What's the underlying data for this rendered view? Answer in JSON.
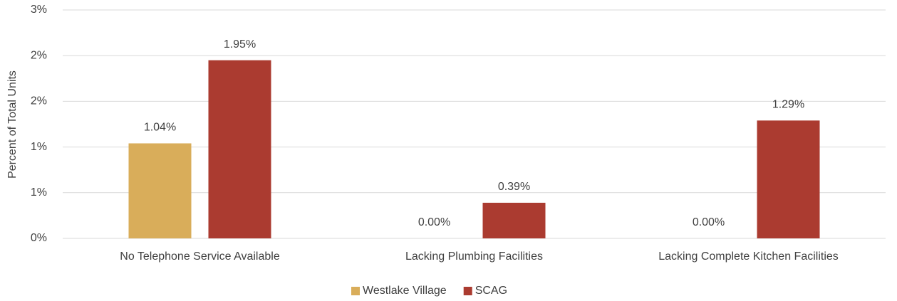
{
  "chart_data": {
    "type": "bar",
    "ylabel": "Percent of Total Units",
    "categories": [
      "No Telephone Service Available",
      "Lacking Plumbing Facilities",
      "Lacking Complete Kitchen Facilities"
    ],
    "series": [
      {
        "name": "Westlake Village",
        "color": "#d9ad5a",
        "values": [
          1.04,
          0.0,
          0.0
        ],
        "value_labels": [
          "1.04%",
          "0.00%",
          "0.00%"
        ]
      },
      {
        "name": "SCAG",
        "color": "#ab3b30",
        "values": [
          1.95,
          0.39,
          1.29
        ],
        "value_labels": [
          "1.95%",
          "0.39%",
          "1.29%"
        ]
      }
    ],
    "ylim": [
      0,
      2.5
    ],
    "yticks": [
      {
        "value": 0,
        "label": "0%"
      },
      {
        "value": 0.5,
        "label": "1%"
      },
      {
        "value": 1,
        "label": "1%"
      },
      {
        "value": 1.5,
        "label": "2%"
      },
      {
        "value": 2,
        "label": "2%"
      },
      {
        "value": 2.5,
        "label": "3%"
      }
    ],
    "grid": true,
    "legend": "bottom"
  }
}
